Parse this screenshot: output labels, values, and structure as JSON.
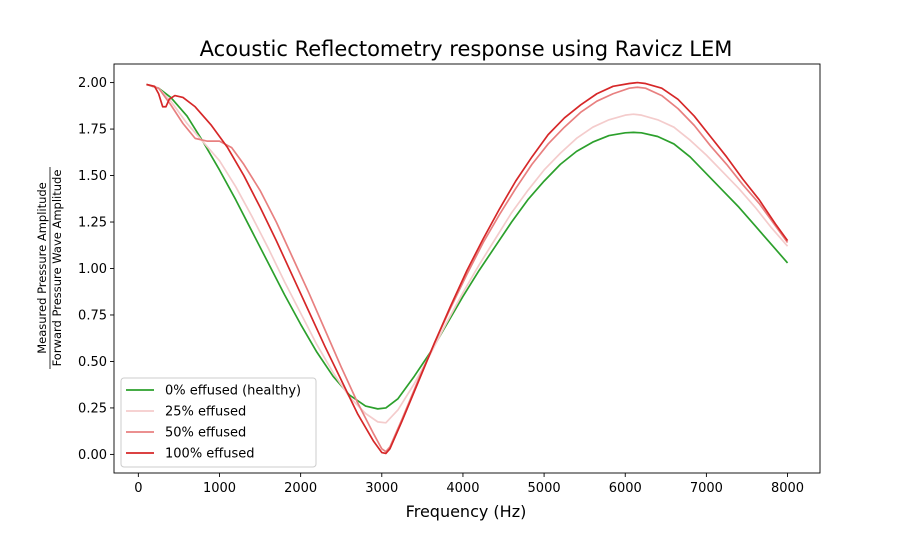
{
  "chart_data": {
    "type": "line",
    "title": "Acoustic Reflectometry response using Ravicz LEM",
    "xlabel": "Frequency (Hz)",
    "ylabel_numerator": "Measured Pressure Amplitude",
    "ylabel_denominator": "Forward Pressure Wave Amplitude",
    "xlim": [
      -300,
      8400
    ],
    "ylim": [
      -0.1,
      2.1
    ],
    "xticks": [
      0,
      1000,
      2000,
      3000,
      4000,
      5000,
      6000,
      7000,
      8000
    ],
    "yticks": [
      "0.00",
      "0.25",
      "0.50",
      "0.75",
      "1.00",
      "1.25",
      "1.50",
      "1.75",
      "2.00"
    ],
    "grid": false,
    "legend_position": "lower-left",
    "series": [
      {
        "name": "0% effused (healthy)",
        "color": "#2ca02c",
        "points": [
          [
            100,
            1.99
          ],
          [
            250,
            1.97
          ],
          [
            400,
            1.92
          ],
          [
            600,
            1.82
          ],
          [
            800,
            1.68
          ],
          [
            1000,
            1.53
          ],
          [
            1200,
            1.37
          ],
          [
            1400,
            1.2
          ],
          [
            1600,
            1.03
          ],
          [
            1800,
            0.86
          ],
          [
            2000,
            0.7
          ],
          [
            2200,
            0.55
          ],
          [
            2400,
            0.42
          ],
          [
            2600,
            0.32
          ],
          [
            2800,
            0.26
          ],
          [
            2950,
            0.245
          ],
          [
            3050,
            0.25
          ],
          [
            3200,
            0.3
          ],
          [
            3400,
            0.42
          ],
          [
            3600,
            0.55
          ],
          [
            3800,
            0.7
          ],
          [
            4000,
            0.85
          ],
          [
            4200,
            0.99
          ],
          [
            4400,
            1.12
          ],
          [
            4600,
            1.25
          ],
          [
            4800,
            1.37
          ],
          [
            5000,
            1.47
          ],
          [
            5200,
            1.56
          ],
          [
            5400,
            1.63
          ],
          [
            5600,
            1.68
          ],
          [
            5800,
            1.715
          ],
          [
            6000,
            1.73
          ],
          [
            6100,
            1.732
          ],
          [
            6200,
            1.73
          ],
          [
            6400,
            1.71
          ],
          [
            6600,
            1.67
          ],
          [
            6800,
            1.6
          ],
          [
            7000,
            1.51
          ],
          [
            7200,
            1.42
          ],
          [
            7400,
            1.33
          ],
          [
            7600,
            1.23
          ],
          [
            7800,
            1.13
          ],
          [
            8000,
            1.03
          ]
        ]
      },
      {
        "name": "25% effused",
        "color": "#f4cccc",
        "points": [
          [
            100,
            1.99
          ],
          [
            250,
            1.97
          ],
          [
            400,
            1.9
          ],
          [
            600,
            1.78
          ],
          [
            800,
            1.68
          ],
          [
            1000,
            1.58
          ],
          [
            1200,
            1.44
          ],
          [
            1400,
            1.28
          ],
          [
            1600,
            1.11
          ],
          [
            1800,
            0.93
          ],
          [
            2000,
            0.76
          ],
          [
            2200,
            0.59
          ],
          [
            2400,
            0.44
          ],
          [
            2600,
            0.31
          ],
          [
            2800,
            0.22
          ],
          [
            2950,
            0.175
          ],
          [
            3050,
            0.17
          ],
          [
            3200,
            0.24
          ],
          [
            3400,
            0.38
          ],
          [
            3600,
            0.54
          ],
          [
            3800,
            0.71
          ],
          [
            4000,
            0.87
          ],
          [
            4200,
            1.02
          ],
          [
            4400,
            1.16
          ],
          [
            4600,
            1.3
          ],
          [
            4800,
            1.42
          ],
          [
            5000,
            1.53
          ],
          [
            5200,
            1.62
          ],
          [
            5400,
            1.7
          ],
          [
            5600,
            1.76
          ],
          [
            5800,
            1.8
          ],
          [
            6000,
            1.825
          ],
          [
            6100,
            1.83
          ],
          [
            6200,
            1.825
          ],
          [
            6400,
            1.8
          ],
          [
            6600,
            1.76
          ],
          [
            6800,
            1.69
          ],
          [
            7000,
            1.61
          ],
          [
            7200,
            1.52
          ],
          [
            7400,
            1.43
          ],
          [
            7600,
            1.33
          ],
          [
            7800,
            1.22
          ],
          [
            8000,
            1.12
          ]
        ]
      },
      {
        "name": "50% effused",
        "color": "#e88080",
        "points": [
          [
            100,
            1.99
          ],
          [
            250,
            1.97
          ],
          [
            400,
            1.88
          ],
          [
            550,
            1.78
          ],
          [
            700,
            1.7
          ],
          [
            850,
            1.685
          ],
          [
            1000,
            1.685
          ],
          [
            1150,
            1.65
          ],
          [
            1300,
            1.56
          ],
          [
            1500,
            1.42
          ],
          [
            1700,
            1.25
          ],
          [
            1900,
            1.06
          ],
          [
            2100,
            0.87
          ],
          [
            2300,
            0.67
          ],
          [
            2500,
            0.47
          ],
          [
            2700,
            0.28
          ],
          [
            2900,
            0.11
          ],
          [
            3000,
            0.03
          ],
          [
            3050,
            0.015
          ],
          [
            3100,
            0.04
          ],
          [
            3250,
            0.19
          ],
          [
            3450,
            0.4
          ],
          [
            3650,
            0.6
          ],
          [
            3850,
            0.79
          ],
          [
            4050,
            0.97
          ],
          [
            4250,
            1.14
          ],
          [
            4450,
            1.29
          ],
          [
            4650,
            1.43
          ],
          [
            4850,
            1.56
          ],
          [
            5050,
            1.67
          ],
          [
            5250,
            1.76
          ],
          [
            5450,
            1.84
          ],
          [
            5650,
            1.9
          ],
          [
            5850,
            1.94
          ],
          [
            6050,
            1.97
          ],
          [
            6150,
            1.975
          ],
          [
            6250,
            1.97
          ],
          [
            6450,
            1.93
          ],
          [
            6650,
            1.86
          ],
          [
            6850,
            1.77
          ],
          [
            7050,
            1.66
          ],
          [
            7250,
            1.56
          ],
          [
            7450,
            1.45
          ],
          [
            7650,
            1.35
          ],
          [
            7850,
            1.23
          ],
          [
            8000,
            1.14
          ]
        ]
      },
      {
        "name": "100% effused",
        "color": "#d62728",
        "points": [
          [
            100,
            1.99
          ],
          [
            200,
            1.98
          ],
          [
            250,
            1.94
          ],
          [
            300,
            1.87
          ],
          [
            340,
            1.87
          ],
          [
            380,
            1.91
          ],
          [
            450,
            1.93
          ],
          [
            550,
            1.92
          ],
          [
            700,
            1.87
          ],
          [
            900,
            1.77
          ],
          [
            1100,
            1.65
          ],
          [
            1300,
            1.5
          ],
          [
            1500,
            1.33
          ],
          [
            1700,
            1.15
          ],
          [
            1900,
            0.96
          ],
          [
            2100,
            0.77
          ],
          [
            2300,
            0.58
          ],
          [
            2500,
            0.4
          ],
          [
            2700,
            0.22
          ],
          [
            2900,
            0.07
          ],
          [
            3000,
            0.01
          ],
          [
            3050,
            0.005
          ],
          [
            3100,
            0.03
          ],
          [
            3250,
            0.18
          ],
          [
            3450,
            0.39
          ],
          [
            3650,
            0.6
          ],
          [
            3850,
            0.8
          ],
          [
            4050,
            0.99
          ],
          [
            4250,
            1.16
          ],
          [
            4450,
            1.32
          ],
          [
            4650,
            1.47
          ],
          [
            4850,
            1.6
          ],
          [
            5050,
            1.72
          ],
          [
            5250,
            1.81
          ],
          [
            5450,
            1.88
          ],
          [
            5650,
            1.94
          ],
          [
            5850,
            1.98
          ],
          [
            6050,
            1.995
          ],
          [
            6150,
            2.0
          ],
          [
            6250,
            1.995
          ],
          [
            6450,
            1.97
          ],
          [
            6650,
            1.91
          ],
          [
            6850,
            1.82
          ],
          [
            7050,
            1.71
          ],
          [
            7250,
            1.6
          ],
          [
            7450,
            1.48
          ],
          [
            7650,
            1.37
          ],
          [
            7850,
            1.24
          ],
          [
            8000,
            1.15
          ]
        ]
      }
    ]
  }
}
